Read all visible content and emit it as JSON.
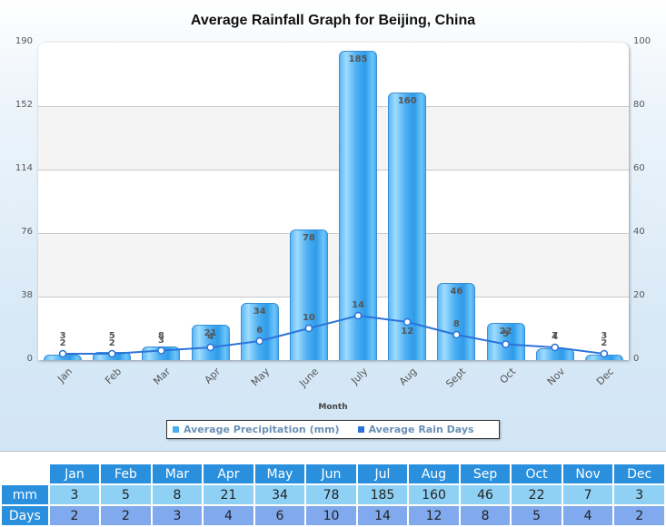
{
  "title": "Average Rainfall Graph for Beijing, China",
  "x_axis_title": "Month",
  "legend": [
    {
      "label": "Average Precipitation (mm)",
      "color": "#4aaeef"
    },
    {
      "label": "Average Rain Days",
      "color": "#2b73d9"
    }
  ],
  "y_left_ticks": [
    "190",
    "152",
    "114",
    "76",
    "38",
    "0"
  ],
  "y_right_ticks": [
    "100",
    "80",
    "60",
    "40",
    "20",
    "0"
  ],
  "x_labels": [
    "Jan",
    "Feb",
    "Mar",
    "Apr",
    "May",
    "June",
    "July",
    "Aug",
    "Sept",
    "Oct",
    "Nov",
    "Dec"
  ],
  "bar_labels": [
    "3",
    "5",
    "8",
    "21",
    "34",
    "78",
    "185",
    "160",
    "46",
    "22",
    "7",
    "3"
  ],
  "line_labels": [
    "2",
    "2",
    "3",
    "4",
    "6",
    "10",
    "14",
    "12",
    "8",
    "5",
    "4",
    "2"
  ],
  "table": {
    "months": [
      "Jan",
      "Feb",
      "Mar",
      "Apr",
      "May",
      "Jun",
      "Jul",
      "Aug",
      "Sep",
      "Oct",
      "Nov",
      "Dec"
    ],
    "rows": [
      {
        "label": "mm",
        "values": [
          "3",
          "5",
          "8",
          "21",
          "34",
          "78",
          "185",
          "160",
          "46",
          "22",
          "7",
          "3"
        ]
      },
      {
        "label": "Days",
        "values": [
          "2",
          "2",
          "3",
          "4",
          "6",
          "10",
          "14",
          "12",
          "8",
          "5",
          "4",
          "2"
        ]
      }
    ]
  },
  "chart_data": {
    "type": "bar",
    "title": "Average Rainfall Graph for Beijing, China",
    "xlabel": "Month",
    "ylabel": "",
    "categories": [
      "Jan",
      "Feb",
      "Mar",
      "Apr",
      "May",
      "June",
      "July",
      "Aug",
      "Sept",
      "Oct",
      "Nov",
      "Dec"
    ],
    "series": [
      {
        "name": "Average Precipitation (mm)",
        "type": "bar",
        "axis": "left",
        "color": "#4aaeef",
        "values": [
          3,
          5,
          8,
          21,
          34,
          78,
          185,
          160,
          46,
          22,
          7,
          3
        ]
      },
      {
        "name": "Average Rain Days",
        "type": "line",
        "axis": "right",
        "color": "#2b73d9",
        "values": [
          2,
          2,
          3,
          4,
          6,
          10,
          14,
          12,
          8,
          5,
          4,
          2
        ]
      }
    ],
    "ylim": [
      0,
      190
    ],
    "y2lim": [
      0,
      100
    ],
    "yticks": [
      0,
      38,
      76,
      114,
      152,
      190
    ],
    "y2ticks": [
      0,
      20,
      40,
      60,
      80,
      100
    ],
    "grid": true,
    "legend_position": "bottom"
  }
}
